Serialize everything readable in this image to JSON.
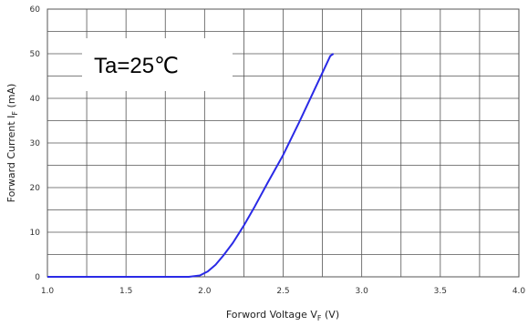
{
  "chart_data": {
    "type": "line",
    "title": "",
    "xlabel_main": "Forword Voltage V",
    "xlabel_sub": "F",
    "xlabel_unit": " (V)",
    "ylabel_main": "Forward Current I",
    "ylabel_sub": "F",
    "ylabel_unit": " (mA)",
    "xlim": [
      1.0,
      4.0
    ],
    "ylim": [
      0,
      60
    ],
    "xticks": [
      "1.0",
      "1.5",
      "2.0",
      "2.5",
      "3.0",
      "3.5",
      "4.0"
    ],
    "yticks": [
      "0",
      "10",
      "20",
      "30",
      "40",
      "50",
      "60"
    ],
    "grid": true,
    "annotation": "Ta=25℃",
    "series": [
      {
        "color": "#2a2ae6",
        "x": [
          1.0,
          1.5,
          1.9,
          1.97,
          2.02,
          2.07,
          2.12,
          2.18,
          2.25,
          2.32,
          2.4,
          2.5,
          2.6,
          2.7,
          2.8,
          2.82
        ],
        "y": [
          0,
          0,
          0,
          0.3,
          1.2,
          2.7,
          4.8,
          7.6,
          11.5,
          15.8,
          21.0,
          27.3,
          34.5,
          42.0,
          49.5,
          50.0
        ]
      }
    ]
  }
}
